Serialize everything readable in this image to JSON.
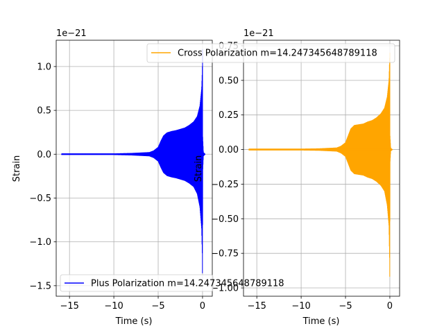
{
  "chart_data": [
    {
      "type": "line",
      "panel": "left",
      "offset_text": "1e−21",
      "xlabel": "Time (s)",
      "ylabel": "Strain",
      "xlim": [
        -16.5,
        1.1
      ],
      "ylim": [
        -1.62,
        1.3
      ],
      "xticks": [
        -15,
        -10,
        -5,
        0
      ],
      "xtick_labels": [
        "−15",
        "−10",
        "−5",
        "0"
      ],
      "yticks": [
        -1.5,
        -1.0,
        -0.5,
        0.0,
        0.5,
        1.0
      ],
      "ytick_labels": [
        "−1.5",
        "−1.0",
        "−0.5",
        "0.0",
        "0.5",
        "1.0"
      ],
      "grid": true,
      "legend_position": "lower-left",
      "series": [
        {
          "name": "Plus Polarization m=14.247345648789118",
          "color": "#0000ff",
          "t_start": -15.9,
          "t_end": 0.3,
          "envelope": {
            "t": [
              -15.9,
              -10,
              -8,
              -6,
              -5.5,
              -5,
              -4.7,
              -4.4,
              -4,
              -3.5,
              -3,
              -2.5,
              -2,
              -1.5,
              -1,
              -0.6,
              -0.3,
              -0.1,
              -0.03,
              0.0,
              0.02,
              0.1,
              0.3
            ],
            "pos": [
              0.005,
              0.005,
              0.01,
              0.02,
              0.04,
              0.08,
              0.15,
              0.21,
              0.245,
              0.26,
              0.27,
              0.285,
              0.3,
              0.33,
              0.37,
              0.43,
              0.55,
              0.75,
              0.95,
              1.2,
              0.2,
              0.02,
              0.0
            ],
            "neg": [
              0.005,
              0.005,
              0.01,
              0.02,
              0.04,
              0.08,
              0.15,
              0.21,
              0.245,
              0.26,
              0.27,
              0.285,
              0.3,
              0.33,
              0.37,
              0.45,
              0.6,
              0.85,
              1.15,
              1.5,
              0.2,
              0.02,
              0.0
            ]
          }
        }
      ]
    },
    {
      "type": "line",
      "panel": "right",
      "offset_text": "1e−21",
      "xlabel": "Time (s)",
      "ylabel": "Strain",
      "xlim": [
        -16.5,
        1.1
      ],
      "ylim": [
        -1.06,
        0.79
      ],
      "xticks": [
        -15,
        -10,
        -5,
        0
      ],
      "xtick_labels": [
        "−15",
        "−10",
        "−5",
        "0"
      ],
      "yticks": [
        -1.0,
        -0.75,
        -0.5,
        -0.25,
        0.0,
        0.25,
        0.5,
        0.75
      ],
      "ytick_labels": [
        "−1.00",
        "−0.75",
        "−0.50",
        "−0.25",
        "0.00",
        "0.25",
        "0.50",
        "0.75"
      ],
      "grid": true,
      "legend_position": "upper-right",
      "series": [
        {
          "name": "Cross Polarization m=14.247345648789118",
          "color": "#ffa500",
          "t_start": -15.9,
          "t_end": 0.3,
          "envelope": {
            "t": [
              -15.9,
              -10,
              -8,
              -6,
              -5.5,
              -5,
              -4.7,
              -4.4,
              -4,
              -3.5,
              -3,
              -2.5,
              -2,
              -1.5,
              -1,
              -0.6,
              -0.3,
              -0.1,
              -0.03,
              0.0,
              0.02,
              0.1,
              0.3
            ],
            "pos": [
              0.004,
              0.004,
              0.006,
              0.012,
              0.025,
              0.05,
              0.1,
              0.15,
              0.175,
              0.18,
              0.185,
              0.2,
              0.21,
              0.23,
              0.26,
              0.3,
              0.38,
              0.5,
              0.65,
              0.7,
              0.1,
              0.01,
              0.0
            ],
            "neg": [
              0.004,
              0.004,
              0.006,
              0.012,
              0.025,
              0.05,
              0.1,
              0.15,
              0.175,
              0.18,
              0.185,
              0.2,
              0.21,
              0.23,
              0.26,
              0.3,
              0.4,
              0.55,
              0.8,
              1.0,
              0.1,
              0.01,
              0.0
            ]
          }
        }
      ]
    }
  ]
}
